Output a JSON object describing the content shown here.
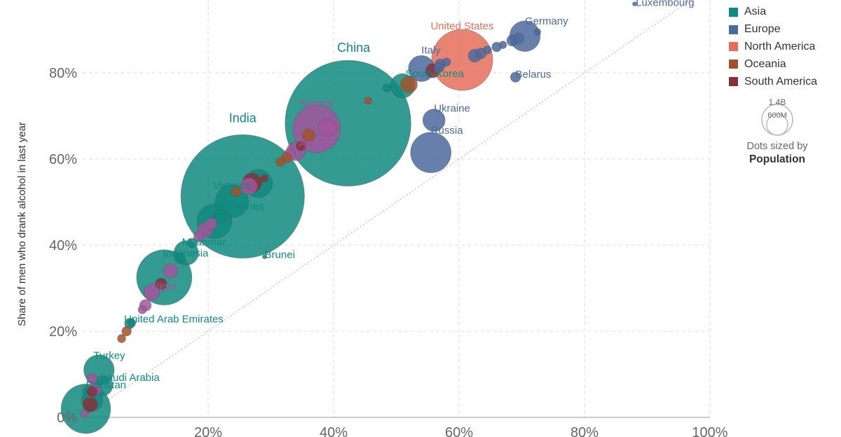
{
  "chart_data": {
    "type": "scatter",
    "title": "",
    "xlabel": "",
    "ylabel": "Share of men who drank alcohol in last year",
    "xlim": [
      0,
      100
    ],
    "ylim": [
      0,
      100
    ],
    "x_ticks": [
      "20%",
      "40%",
      "60%",
      "80%",
      "100%"
    ],
    "y_ticks": [
      "0%",
      "20%",
      "40%",
      "60%",
      "80%"
    ],
    "diagonal_line": true,
    "legend": [
      {
        "name": "Asia",
        "color": "#0f8a7e"
      },
      {
        "name": "Europe",
        "color": "#4c6a9c"
      },
      {
        "name": "North America",
        "color": "#e56e5a"
      },
      {
        "name": "Oceania",
        "color": "#a2522b"
      },
      {
        "name": "South America",
        "color": "#883039"
      }
    ],
    "size_legend": {
      "large": "1.4B",
      "small": "600M",
      "caption": "Dots sized by",
      "variable": "Population"
    },
    "labeled_points": [
      {
        "name": "Luxembourg",
        "region": "Europe",
        "x": 88,
        "y": 96,
        "pop": 0.6
      },
      {
        "name": "Germany",
        "region": "Europe",
        "x": 70.5,
        "y": 88.5,
        "pop": 83
      },
      {
        "name": "United States",
        "region": "North America",
        "x": 60.5,
        "y": 83,
        "pop": 330
      },
      {
        "name": "Italy",
        "region": "Europe",
        "x": 54,
        "y": 81,
        "pop": 60
      },
      {
        "name": "Belarus",
        "region": "Europe",
        "x": 69,
        "y": 79,
        "pop": 9
      },
      {
        "name": "South Korea",
        "region": "Asia",
        "x": 51,
        "y": 77,
        "pop": 52
      },
      {
        "name": "China",
        "region": "Asia",
        "x": 42.3,
        "y": 68.3,
        "pop": 1400
      },
      {
        "name": "Ukraine",
        "region": "Europe",
        "x": 56,
        "y": 69,
        "pop": 44
      },
      {
        "name": "Nigeria",
        "region": "Africa",
        "x": 37.3,
        "y": 67,
        "pop": 200
      },
      {
        "name": "Russia",
        "region": "Europe",
        "x": 55.5,
        "y": 61.5,
        "pop": 145
      },
      {
        "name": "Angola",
        "region": "Africa",
        "x": 34,
        "y": 61.8,
        "pop": 31
      },
      {
        "name": "India",
        "region": "Asia",
        "x": 25.5,
        "y": 51.3,
        "pop": 1350
      },
      {
        "name": "Vietnam",
        "region": "Asia",
        "x": 23.8,
        "y": 50.2,
        "pop": 96
      },
      {
        "name": "Philippines",
        "region": "Asia",
        "x": 21,
        "y": 45.5,
        "pop": 106
      },
      {
        "name": "Myanmar",
        "region": "Asia",
        "x": 16.5,
        "y": 38.2,
        "pop": 53
      },
      {
        "name": "Brunei",
        "region": "Asia",
        "x": 29,
        "y": 37.3,
        "pop": 0.4
      },
      {
        "name": "Indonesia",
        "region": "Asia",
        "x": 13,
        "y": 32.5,
        "pop": 270
      },
      {
        "name": "Niger",
        "region": "Africa",
        "x": 11,
        "y": 29,
        "pop": 22
      },
      {
        "name": "United Arab Emirates",
        "region": "Asia",
        "x": 7.5,
        "y": 21.8,
        "pop": 9.5
      },
      {
        "name": "Turkey",
        "region": "Asia",
        "x": 2.6,
        "y": 11,
        "pop": 82
      },
      {
        "name": "Saudi Arabia",
        "region": "Asia",
        "x": 3.2,
        "y": 7.3,
        "pop": 34
      },
      {
        "name": "Pakistan",
        "region": "Asia",
        "x": 0.5,
        "y": 2,
        "pop": 216
      }
    ],
    "other_points": [
      {
        "region": "Europe",
        "x": 62.5,
        "y": 84,
        "pop": 15
      },
      {
        "region": "Europe",
        "x": 63.5,
        "y": 84.5,
        "pop": 10
      },
      {
        "region": "Europe",
        "x": 64.5,
        "y": 85.3,
        "pop": 6
      },
      {
        "region": "Europe",
        "x": 66,
        "y": 86,
        "pop": 8
      },
      {
        "region": "Europe",
        "x": 67,
        "y": 86.5,
        "pop": 5
      },
      {
        "region": "Europe",
        "x": 68.5,
        "y": 87.5,
        "pop": 11
      },
      {
        "region": "Europe",
        "x": 69.5,
        "y": 88,
        "pop": 10
      },
      {
        "region": "Europe",
        "x": 72.5,
        "y": 89.5,
        "pop": 4
      },
      {
        "region": "Europe",
        "x": 57,
        "y": 82,
        "pop": 10
      },
      {
        "region": "Europe",
        "x": 58,
        "y": 82.5,
        "pop": 6
      },
      {
        "region": "South America",
        "x": 55.8,
        "y": 80.5,
        "pop": 18
      },
      {
        "region": "Europe",
        "x": 56.8,
        "y": 81.2,
        "pop": 9
      },
      {
        "region": "Oceania",
        "x": 52,
        "y": 77.3,
        "pop": 25
      },
      {
        "region": "Asia",
        "x": 48.5,
        "y": 76.5,
        "pop": 6
      },
      {
        "region": "Oceania",
        "x": 45.5,
        "y": 73.5,
        "pop": 5
      },
      {
        "region": "Africa",
        "x": 39,
        "y": 67.3,
        "pop": 30
      },
      {
        "region": "Oceania",
        "x": 36,
        "y": 65.5,
        "pop": 15
      },
      {
        "region": "South America",
        "x": 34.8,
        "y": 63,
        "pop": 8
      },
      {
        "region": "Oceania",
        "x": 32.5,
        "y": 60.3,
        "pop": 10
      },
      {
        "region": "Oceania",
        "x": 31.5,
        "y": 59.3,
        "pop": 7
      },
      {
        "region": "Africa",
        "x": 33,
        "y": 61,
        "pop": 12
      },
      {
        "region": "South America",
        "x": 29,
        "y": 55.5,
        "pop": 5
      },
      {
        "region": "South America",
        "x": 27,
        "y": 54.5,
        "pop": 33
      },
      {
        "region": "Asia",
        "x": 28,
        "y": 54.3,
        "pop": 70
      },
      {
        "region": "Africa",
        "x": 26.5,
        "y": 53.7,
        "pop": 25
      },
      {
        "region": "Oceania",
        "x": 24.5,
        "y": 52.5,
        "pop": 10
      },
      {
        "region": "Asia",
        "x": 22,
        "y": 46.8,
        "pop": 15
      },
      {
        "region": "Africa",
        "x": 20.5,
        "y": 45,
        "pop": 12
      },
      {
        "region": "Africa",
        "x": 19.5,
        "y": 43.5,
        "pop": 20
      },
      {
        "region": "Africa",
        "x": 18.5,
        "y": 42,
        "pop": 9
      },
      {
        "region": "Asia",
        "x": 17.5,
        "y": 40.5,
        "pop": 8
      },
      {
        "region": "Asia",
        "x": 15.5,
        "y": 37,
        "pop": 10
      },
      {
        "region": "Africa",
        "x": 14,
        "y": 34,
        "pop": 18
      },
      {
        "region": "South America",
        "x": 12.5,
        "y": 31,
        "pop": 12
      },
      {
        "region": "Africa",
        "x": 10,
        "y": 26,
        "pop": 12
      },
      {
        "region": "Africa",
        "x": 9.5,
        "y": 25,
        "pop": 6
      },
      {
        "region": "Oceania",
        "x": 7,
        "y": 20,
        "pop": 8
      },
      {
        "region": "Asia",
        "x": 7.8,
        "y": 22,
        "pop": 6
      },
      {
        "region": "Oceania",
        "x": 6.2,
        "y": 18.3,
        "pop": 6
      },
      {
        "region": "Africa",
        "x": 1.5,
        "y": 9,
        "pop": 10
      },
      {
        "region": "Asia",
        "x": 1,
        "y": 6,
        "pop": 15
      },
      {
        "region": "South America",
        "x": 1.5,
        "y": 6,
        "pop": 10
      },
      {
        "region": "Africa",
        "x": 2,
        "y": 6.5,
        "pop": 12
      },
      {
        "region": "South America",
        "x": 1.2,
        "y": 3,
        "pop": 20
      },
      {
        "region": "Asia",
        "x": 1.5,
        "y": 4,
        "pop": 40
      },
      {
        "region": "Africa",
        "x": 0.3,
        "y": 0.8,
        "pop": 5
      }
    ]
  }
}
